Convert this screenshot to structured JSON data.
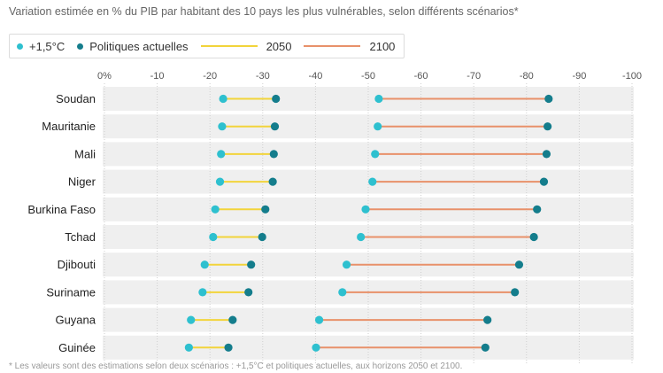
{
  "title": "Variation estimée en % du PIB par habitant des 10 pays les plus vulnérables, selon différents scénarios*",
  "legend": {
    "items": [
      {
        "label": "+1,5°C",
        "color": "#2ec0cf",
        "kind": "dot"
      },
      {
        "label": "Politiques actuelles",
        "color": "#147d8c",
        "kind": "dot"
      },
      {
        "label": "2050",
        "color": "#f2d43b",
        "kind": "line"
      },
      {
        "label": "2100",
        "color": "#e8916a",
        "kind": "line"
      }
    ]
  },
  "chart_data": {
    "type": "dumbbell",
    "x_ticks": [
      0,
      -10,
      -20,
      -30,
      -40,
      -50,
      -60,
      -70,
      -80,
      -90,
      -100
    ],
    "x_tick_labels": [
      "0%",
      "-10",
      "-20",
      "-30",
      "-40",
      "-50",
      "-60",
      "-70",
      "-80",
      "-90",
      "-100"
    ],
    "xlim": [
      0,
      -100
    ],
    "grid": true,
    "colors": {
      "scenario_15": "#2ec0cf",
      "scenario_current": "#147d8c",
      "line_2050": "#f2d43b",
      "line_2100": "#e8916a",
      "band": "#efefef"
    },
    "categories": [
      "Soudan",
      "Mauritanie",
      "Mali",
      "Niger",
      "Burkina Faso",
      "Tchad",
      "Djibouti",
      "Suriname",
      "Guyana",
      "Guinée"
    ],
    "series": [
      {
        "name": "2050",
        "pairs": [
          [
            -22.5,
            -32.5
          ],
          [
            -22.3,
            -32.3
          ],
          [
            -22.1,
            -32.1
          ],
          [
            -21.9,
            -31.9
          ],
          [
            -21.0,
            -30.5
          ],
          [
            -20.6,
            -29.9
          ],
          [
            -19.0,
            -27.8
          ],
          [
            -18.6,
            -27.3
          ],
          [
            -16.4,
            -24.3
          ],
          [
            -16.0,
            -23.5
          ]
        ]
      },
      {
        "name": "2100",
        "pairs": [
          [
            -52.0,
            -84.2
          ],
          [
            -51.8,
            -84.0
          ],
          [
            -51.3,
            -83.8
          ],
          [
            -50.8,
            -83.3
          ],
          [
            -49.5,
            -82.0
          ],
          [
            -48.6,
            -81.4
          ],
          [
            -45.9,
            -78.6
          ],
          [
            -45.1,
            -77.8
          ],
          [
            -40.7,
            -72.6
          ],
          [
            -40.1,
            -72.2
          ]
        ]
      }
    ]
  },
  "footnote": "* Les valeurs sont des estimations selon deux scénarios : +1,5°C et politiques actuelles, aux horizons 2050 et 2100."
}
